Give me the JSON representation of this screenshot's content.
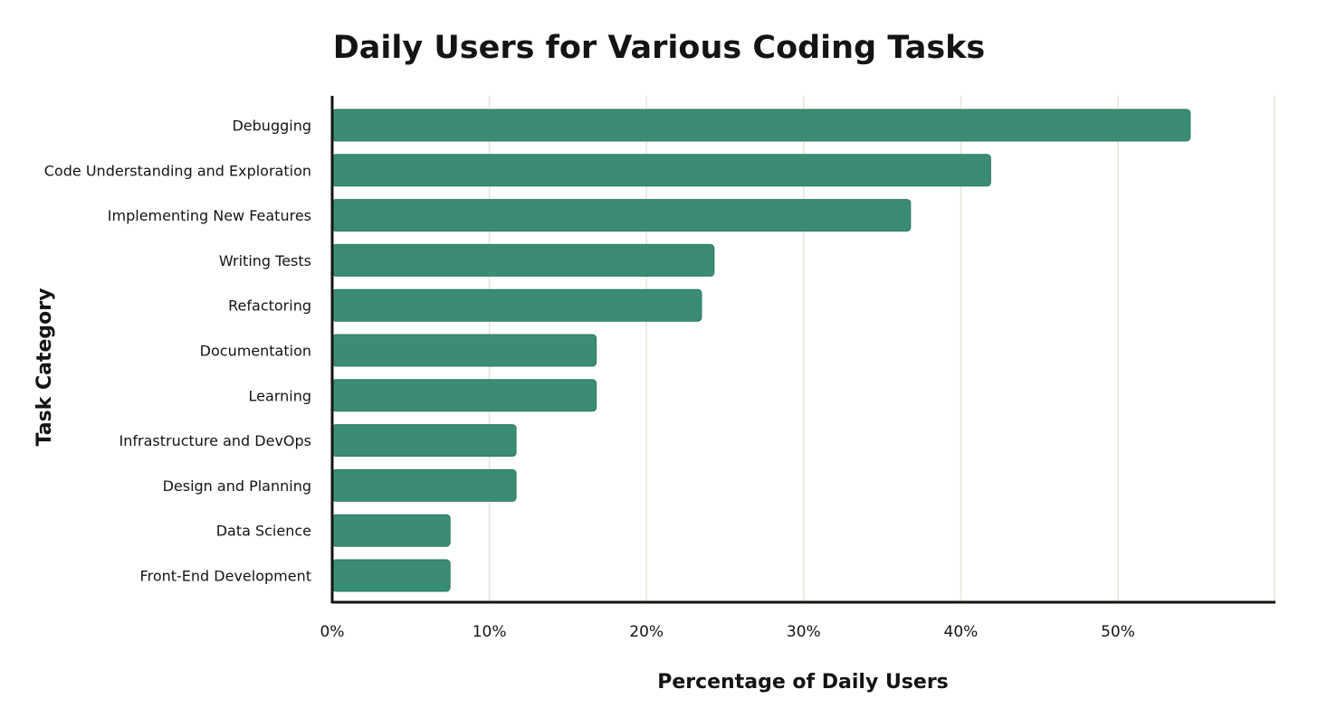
{
  "chart_data": {
    "type": "bar",
    "orientation": "horizontal",
    "title": "Daily Users for Various Coding Tasks",
    "xlabel": "Percentage of Daily Users",
    "ylabel": "Task Category",
    "categories": [
      "Debugging",
      "Code Understanding and Exploration",
      "Implementing New Features",
      "Writing Tests",
      "Refactoring",
      "Documentation",
      "Learning",
      "Infrastructure and DevOps",
      "Design and Planning",
      "Data Science",
      "Front-End Development"
    ],
    "values": [
      54.6,
      41.9,
      36.8,
      24.3,
      23.5,
      16.8,
      16.8,
      11.7,
      11.7,
      7.5,
      7.5
    ],
    "xlim": [
      0,
      60
    ],
    "xticks": [
      0,
      10,
      20,
      30,
      40,
      50
    ],
    "xtick_labels": [
      "0%",
      "10%",
      "20%",
      "30%",
      "40%",
      "50%"
    ],
    "grid": "vertical",
    "colors": {
      "bar": "#3A8D74",
      "bar_edge": "#2F7A63",
      "grid": "#E4E6D9",
      "axis": "#141413",
      "text": "#141413"
    }
  }
}
